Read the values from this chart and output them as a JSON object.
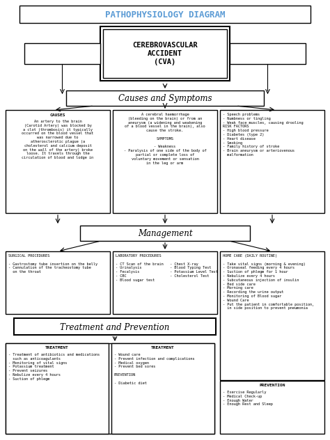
{
  "title": "PATHOPHYSIOLOGY DIAGRAM",
  "title_color": "#5b9bd5",
  "bg_color": "#ffffff",
  "main_box": "CEREBROVASCULAR\nACCIDENT\n(CVA)",
  "section1_title": "Causes and Symptoms",
  "section2_title": "Management",
  "section3_title": "Treatment and Prevention",
  "causes_header": "CAUSES",
  "causes_body": "An artery to the brain\n(Carotid Artery) was blocked by\na clot (thrombosis) it typically\noccurred on the blood vessel that\nwas narrowed due to\natherosclerotic plague (a\ncholesterol and calcium deposit\non the wall of the artery) broke\nloose. It travels through the\ncirculation of blood and lodge in",
  "symptoms_text": "A cerebral haemorrhage\n(bleeding on the brain) or from an\naneurysm (a widening and weakening\nof a blood vessel in the brain), also\ncause the stroke.\n\nSYMPTOMS\n\n- Weakness\n- Paralysis of one side of the body of\npartial or complete loss of\nvoluntary movement or sensation\nin the leg or arm",
  "risk_text": "- Speech problems\n- Numbness or tingling\n- Weak face muscles, causing drooling\nRISK FACTORS\n- High blood pressure\n- Diabetes (type 2)\n- Heart disease\n- Smoking\n- Family history of stroke\n- Brain aneurysm or arteriovenous\n  malformation",
  "surgical_text": "SURGICAL PROCEDURES\n\n- Gastrostomy tube insertion on the belly\n- Cannulation of the tracheostomy tube\n  on the throat",
  "lab_text": "LABORATORY PROCEDURES\n\n- CT Scan of the brain   - Chest X-ray\n- Urinalysis             - Blood Typing Test\n- Fecalysis              - Potassium Level Test\n- CBC                    - Cholesterol Test\n- Blood sugar test",
  "homecare_text": "HOME CARE (DAILY ROUTINE)\n\n- Take vital signs (morning & evening)\n- Oronaseal feeding every 4 hours\n- Suction of phlegm for 1 hour\n- Nebulize every 4 hours\n- Subcutaneous injection of insulin\n- Bed side care\n- Morning care\n- Recording the urine output\n- Monitoring of Blood sugar\n- Wound Care\n- Put the patient in comfortable position,\n  in side position to prevent pneumonia",
  "treatment1_text": "TREATMENT\n\n- Treatment of antibiotics and medications\n  such as anticoagulants\n- Monitoring of vital signs\n- Potassium treatment\n- Prevent seizures\n- Nebulize every 4 hours\n- Suction of phlegm",
  "treatment2_text": "TREATMENT\n\n- Wound care\n- Prevent infection and complications\n- Medical oxygen\n- Prevent bed sores\n\nPREVENTION\n\n- Diabetic diet",
  "prevention_text": "PREVENTION\n\n- Exercise Regularly\n- Medical Check-up\n- Enough Water\n- Enough Rest and Sleep"
}
